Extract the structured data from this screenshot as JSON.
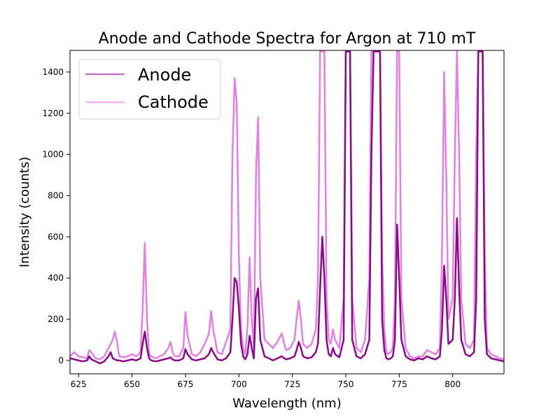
{
  "chart_data": {
    "type": "line",
    "title": "Anode and Cathode Spectra for Argon at 710 mT",
    "xlabel": "Wavelength (nm)",
    "ylabel": "Intensity (counts)",
    "xlim": [
      621,
      824
    ],
    "ylim": [
      -65,
      1505
    ],
    "xticks": [
      625,
      650,
      675,
      700,
      725,
      750,
      775,
      800
    ],
    "yticks": [
      0,
      200,
      400,
      600,
      800,
      1000,
      1200,
      1400
    ],
    "grid": false,
    "legend_position": "top-left",
    "series": [
      {
        "name": "Anode",
        "color": "#8b0a8b",
        "x": [
          621,
          623,
          625,
          627,
          629,
          630,
          631,
          633,
          635,
          637,
          639,
          640,
          641,
          642,
          643,
          644,
          646,
          648,
          650,
          652,
          654,
          655,
          656,
          657,
          658,
          659,
          661,
          663,
          665,
          667,
          668,
          669,
          670,
          672,
          674,
          675,
          676,
          678,
          680,
          682,
          684,
          686,
          687,
          688,
          690,
          692,
          694,
          696,
          697,
          698,
          699,
          700,
          701,
          702,
          703,
          704,
          705,
          706,
          707,
          708,
          709,
          710,
          712,
          714,
          716,
          718,
          720,
          722,
          724,
          726,
          727,
          728,
          729,
          730,
          732,
          734,
          736,
          737,
          738,
          739,
          740,
          741,
          742,
          743,
          744,
          745,
          747,
          749,
          750,
          751,
          752,
          753,
          755,
          757,
          759,
          761,
          762,
          763,
          764,
          765,
          766,
          767,
          768,
          769,
          770,
          771,
          772,
          773,
          774,
          775,
          776,
          778,
          780,
          782,
          784,
          786,
          788,
          790,
          792,
          794,
          795,
          796,
          797,
          798,
          800,
          801,
          802,
          803,
          804,
          806,
          808,
          810,
          811,
          812,
          813,
          814,
          815,
          816,
          818,
          820,
          822,
          824
        ],
        "values": [
          10,
          5,
          0,
          -5,
          0,
          20,
          5,
          -5,
          -15,
          -5,
          20,
          40,
          10,
          5,
          0,
          0,
          -5,
          0,
          5,
          0,
          10,
          80,
          140,
          60,
          10,
          0,
          -5,
          0,
          5,
          10,
          15,
          5,
          0,
          0,
          10,
          55,
          30,
          5,
          0,
          5,
          10,
          30,
          60,
          40,
          5,
          0,
          10,
          40,
          200,
          400,
          380,
          250,
          80,
          20,
          5,
          30,
          120,
          60,
          10,
          300,
          350,
          100,
          20,
          10,
          0,
          10,
          20,
          5,
          10,
          20,
          50,
          90,
          60,
          20,
          10,
          15,
          40,
          80,
          350,
          600,
          400,
          100,
          30,
          20,
          60,
          30,
          15,
          100,
          1500,
          1500,
          1500,
          100,
          20,
          10,
          30,
          100,
          1000,
          1500,
          1500,
          1500,
          1500,
          200,
          50,
          10,
          5,
          10,
          20,
          100,
          660,
          400,
          100,
          20,
          5,
          0,
          10,
          5,
          20,
          10,
          5,
          20,
          150,
          460,
          300,
          80,
          100,
          300,
          690,
          350,
          100,
          30,
          20,
          40,
          300,
          1500,
          1500,
          1500,
          200,
          30,
          10,
          5,
          0,
          -5
        ]
      },
      {
        "name": "Cathode",
        "color": "#e57ee5",
        "x": [
          621,
          623,
          625,
          627,
          629,
          630,
          631,
          633,
          635,
          637,
          639,
          640,
          641,
          642,
          643,
          644,
          646,
          648,
          650,
          652,
          654,
          655,
          656,
          657,
          658,
          659,
          661,
          663,
          665,
          667,
          668,
          669,
          670,
          672,
          674,
          675,
          676,
          678,
          680,
          682,
          684,
          686,
          687,
          688,
          690,
          692,
          694,
          696,
          697,
          698,
          699,
          700,
          701,
          702,
          703,
          704,
          705,
          706,
          707,
          708,
          709,
          710,
          712,
          714,
          716,
          718,
          720,
          722,
          724,
          726,
          727,
          728,
          729,
          730,
          732,
          734,
          736,
          737,
          738,
          739,
          740,
          741,
          742,
          743,
          744,
          745,
          747,
          749,
          750,
          751,
          752,
          753,
          755,
          757,
          759,
          761,
          762,
          763,
          764,
          765,
          766,
          767,
          768,
          769,
          770,
          771,
          772,
          773,
          774,
          775,
          776,
          778,
          780,
          782,
          784,
          786,
          788,
          790,
          792,
          794,
          795,
          796,
          797,
          798,
          800,
          801,
          802,
          803,
          804,
          806,
          808,
          810,
          811,
          812,
          813,
          814,
          815,
          816,
          818,
          820,
          822,
          824
        ],
        "values": [
          20,
          40,
          20,
          15,
          10,
          50,
          40,
          10,
          5,
          20,
          60,
          80,
          100,
          140,
          90,
          20,
          15,
          20,
          30,
          20,
          40,
          250,
          570,
          200,
          30,
          20,
          10,
          20,
          30,
          60,
          90,
          40,
          20,
          20,
          60,
          235,
          120,
          30,
          20,
          40,
          80,
          130,
          240,
          150,
          40,
          30,
          90,
          150,
          1000,
          1370,
          1250,
          500,
          150,
          60,
          30,
          160,
          500,
          200,
          60,
          900,
          1180,
          400,
          100,
          80,
          60,
          90,
          130,
          50,
          60,
          100,
          200,
          290,
          200,
          80,
          60,
          80,
          150,
          400,
          1500,
          1500,
          1500,
          300,
          100,
          80,
          150,
          100,
          60,
          300,
          1500,
          1500,
          1500,
          300,
          60,
          40,
          100,
          400,
          1500,
          1500,
          1500,
          1500,
          1500,
          500,
          150,
          40,
          30,
          40,
          60,
          300,
          1500,
          1500,
          300,
          60,
          20,
          10,
          20,
          20,
          50,
          40,
          30,
          60,
          500,
          1400,
          900,
          200,
          300,
          1000,
          1500,
          1000,
          300,
          80,
          60,
          100,
          1000,
          1500,
          1500,
          1500,
          500,
          60,
          30,
          20,
          10,
          5
        ]
      }
    ]
  }
}
